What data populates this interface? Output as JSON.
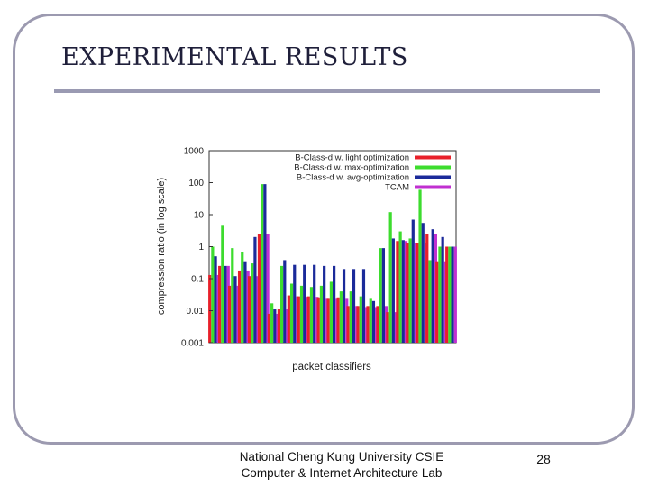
{
  "slide": {
    "title": "EXPERIMENTAL RESULTS",
    "footer_line1": "National Cheng Kung University CSIE",
    "footer_line2": "Computer & Internet Architecture Lab",
    "page_number": "28"
  },
  "chart_data": {
    "type": "bar",
    "scale": "log",
    "title": "",
    "xlabel": "packet classifiers",
    "ylabel": "compression ratio (in log scale)",
    "ylim": [
      0.001,
      1000
    ],
    "yticks": [
      "0.001",
      "0.01",
      "0.1",
      "1",
      "10",
      "100",
      "1000"
    ],
    "grid": false,
    "legend_position": "top-right",
    "series": [
      {
        "name": "B-Class-d w. light optimization",
        "color": "#e8202a",
        "values": [
          0.13,
          0.25,
          0.06,
          0.18,
          0.12,
          2.5,
          0.008,
          0.011,
          0.03,
          0.028,
          0.028,
          0.026,
          0.025,
          0.026,
          0.014,
          0.014,
          0.014,
          0.014,
          0.009,
          1.5,
          1.3,
          1.3,
          2.5,
          0.35,
          1.0
        ]
      },
      {
        "name": "B-Class-d w. max-optimization",
        "color": "#3ddc2e",
        "values": [
          1.0,
          4.5,
          0.9,
          0.7,
          0.3,
          90,
          0.017,
          0.25,
          0.07,
          0.06,
          0.055,
          0.06,
          0.08,
          0.04,
          0.04,
          0.028,
          0.025,
          0.9,
          12,
          3.0,
          1.8,
          60,
          0.38,
          1.0,
          1.0
        ]
      },
      {
        "name": "B-Class-d w. avg-optimization",
        "color": "#1b2a9a",
        "values": [
          0.5,
          0.25,
          0.12,
          0.35,
          2.0,
          90,
          0.011,
          0.38,
          0.27,
          0.27,
          0.27,
          0.25,
          0.25,
          0.2,
          0.2,
          0.2,
          0.02,
          0.9,
          1.8,
          1.6,
          7,
          5.5,
          3.5,
          2.0,
          1.0
        ]
      },
      {
        "name": "TCAM",
        "color": "#c030d0",
        "values": [
          0.13,
          0.25,
          0.06,
          0.18,
          0.12,
          2.5,
          0.008,
          0.011,
          0.028,
          0.027,
          0.027,
          0.025,
          0.025,
          0.025,
          0.014,
          0.013,
          0.013,
          0.014,
          0.009,
          1.5,
          1.3,
          1.3,
          2.5,
          0.35,
          1.0
        ]
      }
    ]
  }
}
